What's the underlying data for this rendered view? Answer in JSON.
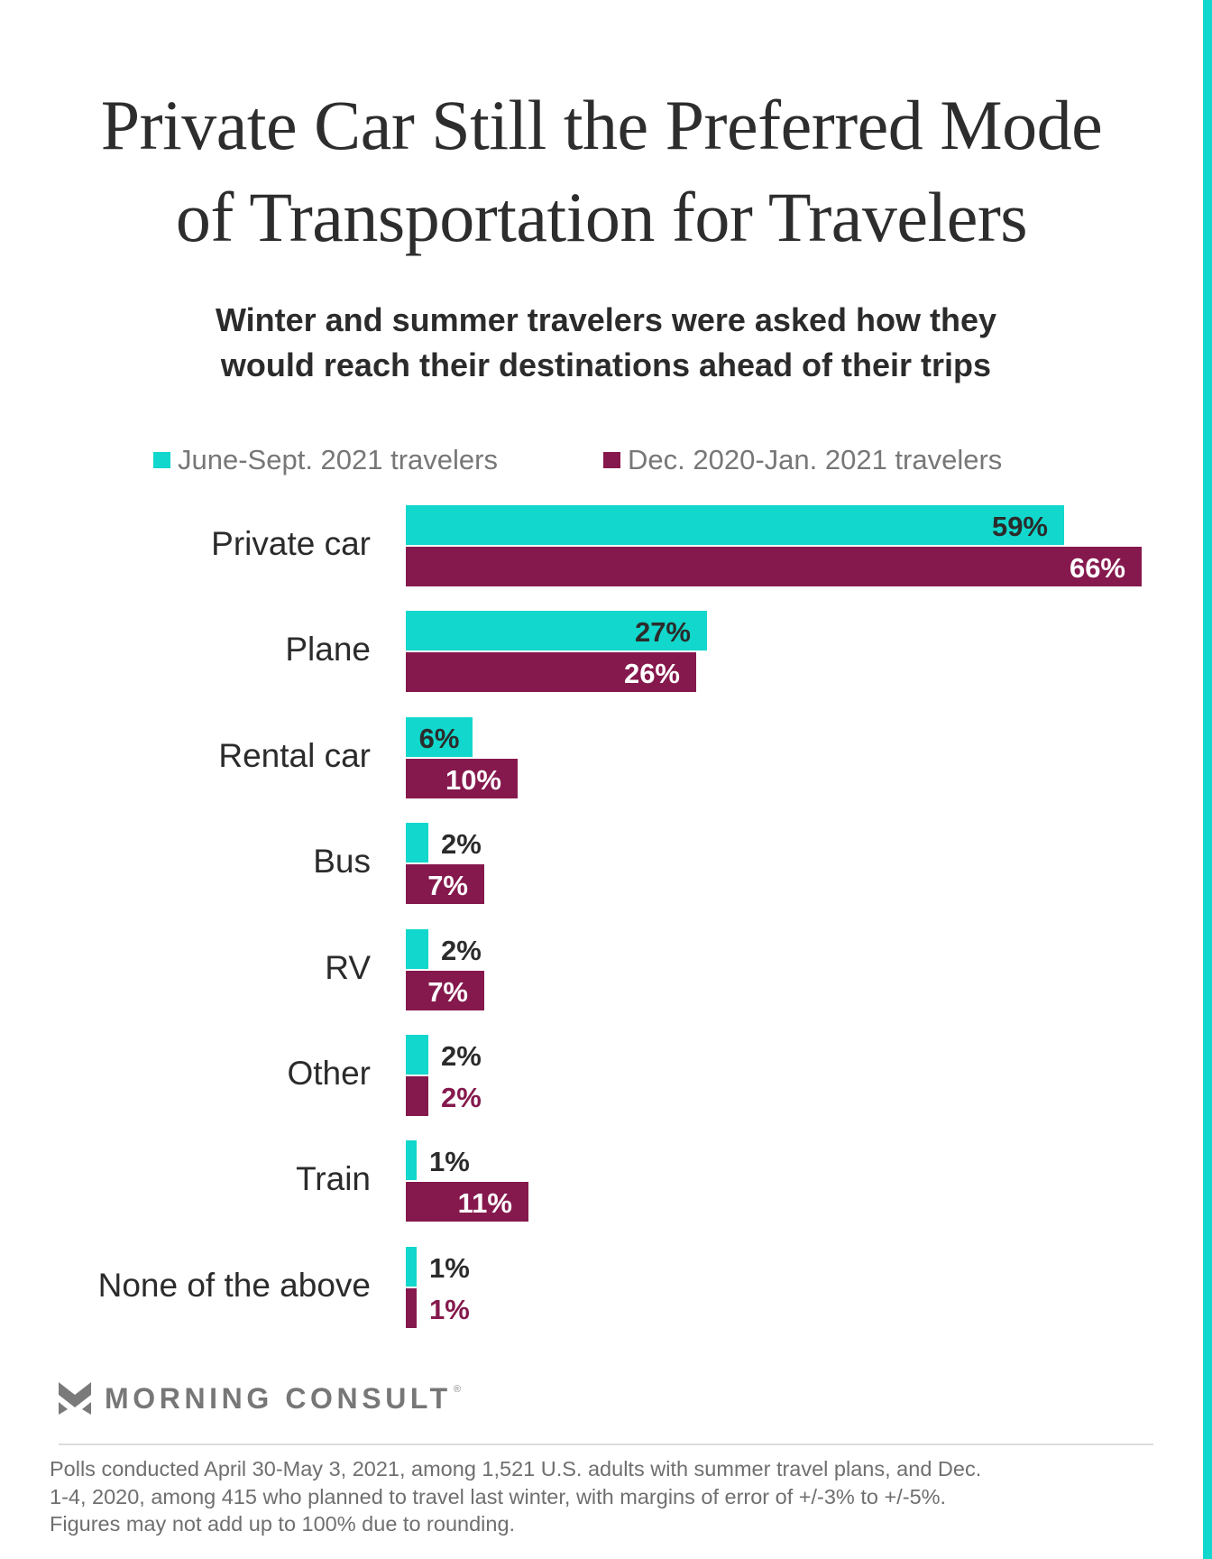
{
  "colors": {
    "series_summer": "#12d7cc",
    "series_winter": "#85194d",
    "accent_stripe": "#12d7cc",
    "text_dark": "#2b2b2b",
    "label_on_winter": "#ffffff"
  },
  "header": {
    "title_lines": [
      "Private Car Still the Preferred Mode",
      "of Transportation for Travelers"
    ],
    "subtitle_lines": [
      "Winter and summer travelers were asked how they",
      "would reach their destinations ahead of their trips"
    ]
  },
  "chart_data": {
    "type": "bar",
    "orientation": "horizontal",
    "title": "Private Car Still the Preferred Mode of Transportation for Travelers",
    "subtitle": "Winter and summer travelers were asked how they would reach their destinations ahead of their trips",
    "xlabel": "",
    "ylabel": "",
    "xlim": [
      0,
      70
    ],
    "grid": false,
    "legend_position": "top",
    "unit": "%",
    "categories": [
      "Private car",
      "Plane",
      "Rental car",
      "Bus",
      "RV",
      "Other",
      "Train",
      "None of the above"
    ],
    "series": [
      {
        "name": "June-Sept. 2021 travelers",
        "color": "#12d7cc",
        "values": [
          59,
          27,
          6,
          2,
          2,
          2,
          1,
          1
        ]
      },
      {
        "name": "Dec. 2020-Jan. 2021 travelers",
        "color": "#85194d",
        "values": [
          66,
          26,
          10,
          7,
          7,
          2,
          11,
          1
        ]
      }
    ],
    "data_labels": [
      [
        "59%",
        "27%",
        "6%",
        "2%",
        "2%",
        "2%",
        "1%",
        "1%"
      ],
      [
        "66%",
        "26%",
        "10%",
        "7%",
        "7%",
        "2%",
        "11%",
        "1%"
      ]
    ]
  },
  "logo": {
    "text": "MORNING CONSULT",
    "registered_mark": "®"
  },
  "footnote_lines": [
    "Polls conducted April 30-May 3, 2021, among 1,521 U.S. adults with summer travel plans, and Dec.",
    "1-4, 2020, among 415 who planned to travel last winter, with margins of error of +/-3% to +/-5%.",
    "Figures may not add up to 100% due to rounding."
  ]
}
